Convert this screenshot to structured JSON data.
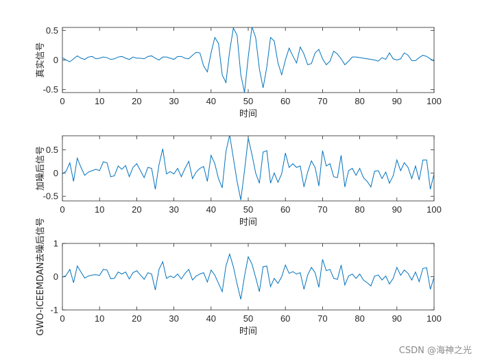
{
  "watermark": "CSDN @海神之光",
  "line_color": "#0072BD",
  "chart_data": [
    {
      "type": "line",
      "xlabel": "时间",
      "ylabel": "真实信号",
      "xlim": [
        0,
        100
      ],
      "ylim": [
        -0.55,
        0.55
      ],
      "xticks": [
        0,
        10,
        20,
        30,
        40,
        50,
        60,
        70,
        80,
        90,
        100
      ],
      "yticks": [
        -0.5,
        0,
        0.5
      ],
      "series": [
        {
          "x": [
            0,
            1,
            2,
            3,
            4,
            5,
            6,
            7,
            8,
            9,
            10,
            11,
            12,
            13,
            14,
            15,
            16,
            17,
            18,
            19,
            20,
            21,
            22,
            23,
            24,
            25,
            26,
            27,
            28,
            29,
            30,
            31,
            32,
            33,
            34,
            35,
            36,
            37,
            38,
            39,
            40,
            41,
            42,
            43,
            44,
            45,
            46,
            47,
            48,
            49,
            50,
            51,
            52,
            53,
            54,
            55,
            56,
            57,
            58,
            59,
            60,
            61,
            62,
            63,
            64,
            65,
            66,
            67,
            68,
            69,
            70,
            71,
            72,
            73,
            74,
            75,
            76,
            77,
            78,
            79,
            80,
            81,
            82,
            83,
            84,
            85,
            86,
            87,
            88,
            89,
            90,
            91,
            92,
            93,
            94,
            95,
            96,
            97,
            98,
            99,
            100
          ],
          "y": [
            0.04,
            0.0,
            -0.03,
            0.02,
            0.07,
            0.03,
            0.01,
            0.05,
            0.06,
            0.02,
            0.03,
            0.05,
            0.04,
            0.01,
            0.02,
            0.05,
            0.06,
            0.03,
            0.01,
            0.05,
            0.03,
            0.03,
            0.02,
            0.06,
            0.07,
            0.03,
            0.0,
            0.05,
            0.05,
            0.03,
            0.01,
            0.06,
            0.06,
            0.03,
            0.02,
            0.08,
            0.13,
            0.12,
            -0.1,
            -0.2,
            0.12,
            0.38,
            0.28,
            -0.25,
            -0.38,
            0.15,
            0.54,
            0.42,
            -0.25,
            -0.55,
            0.05,
            0.56,
            0.38,
            -0.15,
            -0.47,
            -0.12,
            0.38,
            0.32,
            -0.05,
            -0.25,
            0.0,
            0.2,
            0.07,
            -0.05,
            0.22,
            0.1,
            -0.08,
            -0.06,
            0.12,
            0.18,
            0.02,
            -0.08,
            -0.02,
            0.15,
            0.1,
            0.02,
            -0.08,
            -0.02,
            0.05,
            0.05,
            0.04,
            0.03,
            0.02,
            0.01,
            0.0,
            -0.02,
            0.04,
            0.01,
            0.12,
            0.02,
            0.0,
            0.02,
            0.12,
            0.08,
            -0.01,
            -0.01,
            0.04,
            0.08,
            0.06,
            0.02,
            -0.02
          ]
        }
      ]
    },
    {
      "type": "line",
      "xlabel": "时间",
      "ylabel": "加噪后信号",
      "xlim": [
        0,
        100
      ],
      "ylim": [
        -0.6,
        0.8
      ],
      "xticks": [
        0,
        10,
        20,
        30,
        40,
        50,
        60,
        70,
        80,
        90,
        100
      ],
      "yticks": [
        -0.5,
        0,
        0.5
      ],
      "series": [
        {
          "x": [
            0,
            1,
            2,
            3,
            4,
            5,
            6,
            7,
            8,
            9,
            10,
            11,
            12,
            13,
            14,
            15,
            16,
            17,
            18,
            19,
            20,
            21,
            22,
            23,
            24,
            25,
            26,
            27,
            28,
            29,
            30,
            31,
            32,
            33,
            34,
            35,
            36,
            37,
            38,
            39,
            40,
            41,
            42,
            43,
            44,
            45,
            46,
            47,
            48,
            49,
            50,
            51,
            52,
            53,
            54,
            55,
            56,
            57,
            58,
            59,
            60,
            61,
            62,
            63,
            64,
            65,
            66,
            67,
            68,
            69,
            70,
            71,
            72,
            73,
            74,
            75,
            76,
            77,
            78,
            79,
            80,
            81,
            82,
            83,
            84,
            85,
            86,
            87,
            88,
            89,
            90,
            91,
            92,
            93,
            94,
            95,
            96,
            97,
            98,
            99,
            100
          ],
          "y": [
            -0.02,
            0.04,
            0.22,
            -0.18,
            0.32,
            0.12,
            -0.05,
            0.02,
            0.05,
            0.08,
            0.05,
            0.24,
            0.22,
            -0.08,
            -0.06,
            0.15,
            0.08,
            0.16,
            -0.08,
            0.12,
            0.2,
            0.05,
            -0.1,
            0.12,
            0.1,
            -0.35,
            0.18,
            0.52,
            -0.02,
            0.03,
            -0.02,
            0.1,
            -0.08,
            0.1,
            0.25,
            -0.12,
            0.02,
            0.1,
            0.14,
            -0.18,
            0.38,
            0.2,
            -0.12,
            -0.32,
            0.46,
            0.82,
            0.32,
            -0.18,
            -0.58,
            0.05,
            0.75,
            0.4,
            0.0,
            -0.22,
            0.45,
            0.48,
            -0.22,
            0.0,
            -0.2,
            -0.02,
            0.43,
            0.12,
            0.2,
            0.12,
            0.15,
            -0.3,
            0.02,
            0.26,
            0.12,
            -0.28,
            0.48,
            0.15,
            0.2,
            -0.08,
            -0.1,
            0.38,
            -0.3,
            0.05,
            0.1,
            -0.05,
            0.1,
            -0.1,
            -0.18,
            -0.3,
            0.04,
            0.05,
            -0.12,
            0.02,
            -0.22,
            -0.06,
            0.28,
            0.05,
            0.22,
            0.12,
            -0.12,
            0.15,
            -0.15,
            0.28,
            0.28,
            -0.35,
            -0.02
          ]
        }
      ]
    },
    {
      "type": "line",
      "xlabel": "时间",
      "ylabel": "GWO-ICEEMDAN去噪后信号",
      "xlim": [
        0,
        100
      ],
      "ylim": [
        -1,
        1
      ],
      "xticks": [
        0,
        10,
        20,
        30,
        40,
        50,
        60,
        70,
        80,
        90,
        100
      ],
      "yticks": [
        -1,
        0,
        1
      ],
      "series": [
        {
          "x": [
            0,
            1,
            2,
            3,
            4,
            5,
            6,
            7,
            8,
            9,
            10,
            11,
            12,
            13,
            14,
            15,
            16,
            17,
            18,
            19,
            20,
            21,
            22,
            23,
            24,
            25,
            26,
            27,
            28,
            29,
            30,
            31,
            32,
            33,
            34,
            35,
            36,
            37,
            38,
            39,
            40,
            41,
            42,
            43,
            44,
            45,
            46,
            47,
            48,
            49,
            50,
            51,
            52,
            53,
            54,
            55,
            56,
            57,
            58,
            59,
            60,
            61,
            62,
            63,
            64,
            65,
            66,
            67,
            68,
            69,
            70,
            71,
            72,
            73,
            74,
            75,
            76,
            77,
            78,
            79,
            80,
            81,
            82,
            83,
            84,
            85,
            86,
            87,
            88,
            89,
            90,
            91,
            92,
            93,
            94,
            95,
            96,
            97,
            98,
            99,
            100
          ],
          "y": [
            -0.02,
            0.04,
            0.22,
            -0.18,
            0.32,
            0.14,
            -0.04,
            0.02,
            0.05,
            0.06,
            0.04,
            0.22,
            0.2,
            -0.06,
            -0.05,
            0.14,
            0.08,
            0.14,
            -0.07,
            0.12,
            0.18,
            0.05,
            -0.08,
            0.12,
            0.08,
            -0.4,
            0.22,
            0.45,
            -0.05,
            0.02,
            -0.03,
            0.08,
            -0.07,
            0.1,
            0.22,
            -0.1,
            0.02,
            0.08,
            0.12,
            -0.16,
            0.2,
            0.05,
            -0.2,
            -0.45,
            0.32,
            0.68,
            0.3,
            -0.22,
            -0.68,
            0.02,
            0.6,
            0.38,
            -0.02,
            -0.45,
            0.3,
            0.32,
            -0.3,
            -0.05,
            -0.2,
            0.0,
            0.35,
            0.1,
            0.15,
            0.08,
            0.12,
            -0.38,
            0.05,
            0.28,
            0.12,
            -0.32,
            0.52,
            0.18,
            0.22,
            -0.05,
            -0.08,
            0.35,
            -0.25,
            0.02,
            0.08,
            -0.05,
            0.08,
            -0.1,
            -0.18,
            -0.28,
            0.02,
            0.05,
            -0.1,
            0.02,
            -0.22,
            -0.05,
            0.28,
            0.04,
            0.2,
            0.1,
            -0.1,
            0.14,
            -0.15,
            0.25,
            0.27,
            -0.38,
            -0.02
          ]
        }
      ]
    }
  ]
}
